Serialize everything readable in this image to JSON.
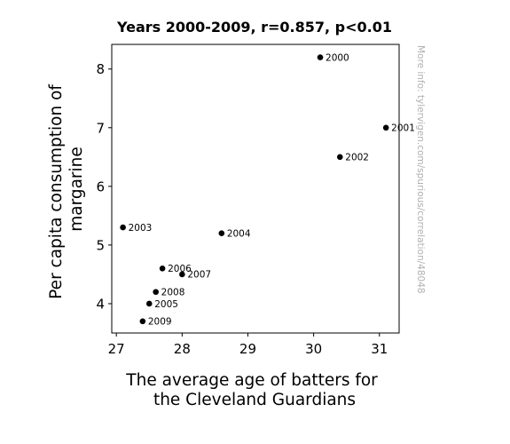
{
  "chart_data": {
    "type": "scatter",
    "title": "Years 2000-2009, r=0.857, p<0.01",
    "xlabel_lines": [
      "The average age of batters for",
      "the Cleveland Guardians"
    ],
    "ylabel_lines": [
      "Per capita consumption of",
      "margarine"
    ],
    "xlim": [
      26.93,
      31.3
    ],
    "ylim": [
      3.5,
      8.42
    ],
    "xticks": [
      27,
      28,
      29,
      30,
      31
    ],
    "yticks": [
      4,
      5,
      6,
      7,
      8
    ],
    "grid": false,
    "marker_color": "#000000",
    "points": [
      {
        "label": "2000",
        "x": 30.1,
        "y": 8.2
      },
      {
        "label": "2001",
        "x": 31.1,
        "y": 7.0
      },
      {
        "label": "2002",
        "x": 30.4,
        "y": 6.5
      },
      {
        "label": "2003",
        "x": 27.1,
        "y": 5.3
      },
      {
        "label": "2004",
        "x": 28.6,
        "y": 5.2
      },
      {
        "label": "2005",
        "x": 27.5,
        "y": 4.0
      },
      {
        "label": "2006",
        "x": 27.7,
        "y": 4.6
      },
      {
        "label": "2007",
        "x": 28.0,
        "y": 4.5
      },
      {
        "label": "2008",
        "x": 27.6,
        "y": 4.2
      },
      {
        "label": "2009",
        "x": 27.4,
        "y": 3.7
      }
    ],
    "watermark": "More info: tylervigen.com/spurious/correlation/48048"
  }
}
